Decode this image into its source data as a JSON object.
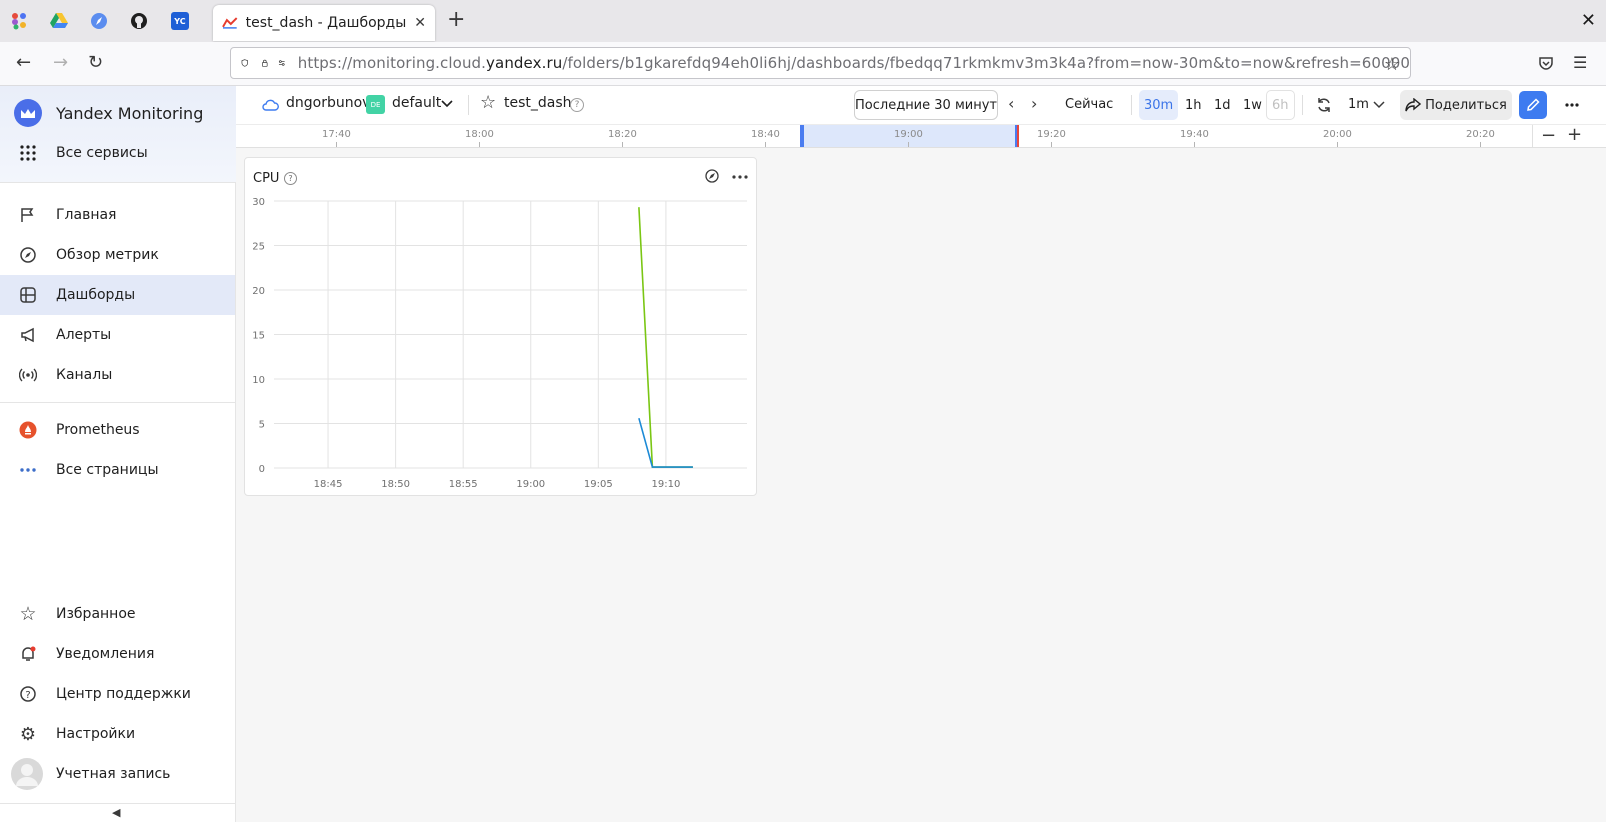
{
  "browser": {
    "tab_title": "test_dash - Дашборды - ",
    "url_prefix": "https://monitoring.cloud.",
    "url_domain": "yandex.ru",
    "url_suffix": "/folders/b1gkarefdq94eh0li6hj/dashboards/fbedqq71rkmkmv3m3k4a?from=now-30m&to=now&refresh=60000",
    "pinned_tab_yc_label": "YC"
  },
  "sidebar": {
    "brand": "Yandex Monitoring",
    "all_services": "Все сервисы",
    "nav": [
      "Главная",
      "Обзор метрик",
      "Дашборды",
      "Алерты",
      "Каналы"
    ],
    "prometheus": "Prometheus",
    "all_pages": "Все страницы",
    "bottom": [
      "Избранное",
      "Уведомления",
      "Центр поддержки",
      "Настройки",
      "Учетная запись"
    ]
  },
  "topbar": {
    "user": "dngorbunov",
    "folder_badge": "DE",
    "folder": "default",
    "dashboard": "test_dash",
    "help": "?",
    "range_label": "Последние 30 минут",
    "now_label": "Сейчас",
    "zoom_options": [
      "30m",
      "1h",
      "1d",
      "1w",
      "6h"
    ],
    "refresh_interval": "1m",
    "share_label": "Поделиться"
  },
  "timeline": {
    "ticks": [
      "17:40",
      "18:00",
      "18:20",
      "18:40",
      "19:00",
      "19:20",
      "19:40",
      "20:00",
      "20:20"
    ]
  },
  "panel": {
    "title": "CPU",
    "help": "?"
  },
  "chart_data": {
    "type": "line",
    "title": "CPU",
    "x_labels": [
      "18:45",
      "18:50",
      "18:55",
      "19:00",
      "19:05",
      "19:10"
    ],
    "y_ticks": [
      0,
      5,
      10,
      15,
      20,
      25,
      30
    ],
    "ylim": [
      0,
      30
    ],
    "xlim_minutes_from_1845": [
      -4,
      31
    ],
    "series": [
      {
        "color": "#7ac613",
        "x_minutes_from_1845": [
          23,
          24,
          27
        ],
        "values": [
          29.3,
          0.1,
          0.1
        ]
      },
      {
        "color": "#1c8ad6",
        "x_minutes_from_1845": [
          23,
          24,
          27
        ],
        "values": [
          5.6,
          0.1,
          0.1
        ]
      }
    ]
  },
  "colors": {
    "accent": "#3d7bf0",
    "brand_icon": "#4a6ee8",
    "selection": "#dde7fb",
    "prometheus": "#e6522c"
  }
}
